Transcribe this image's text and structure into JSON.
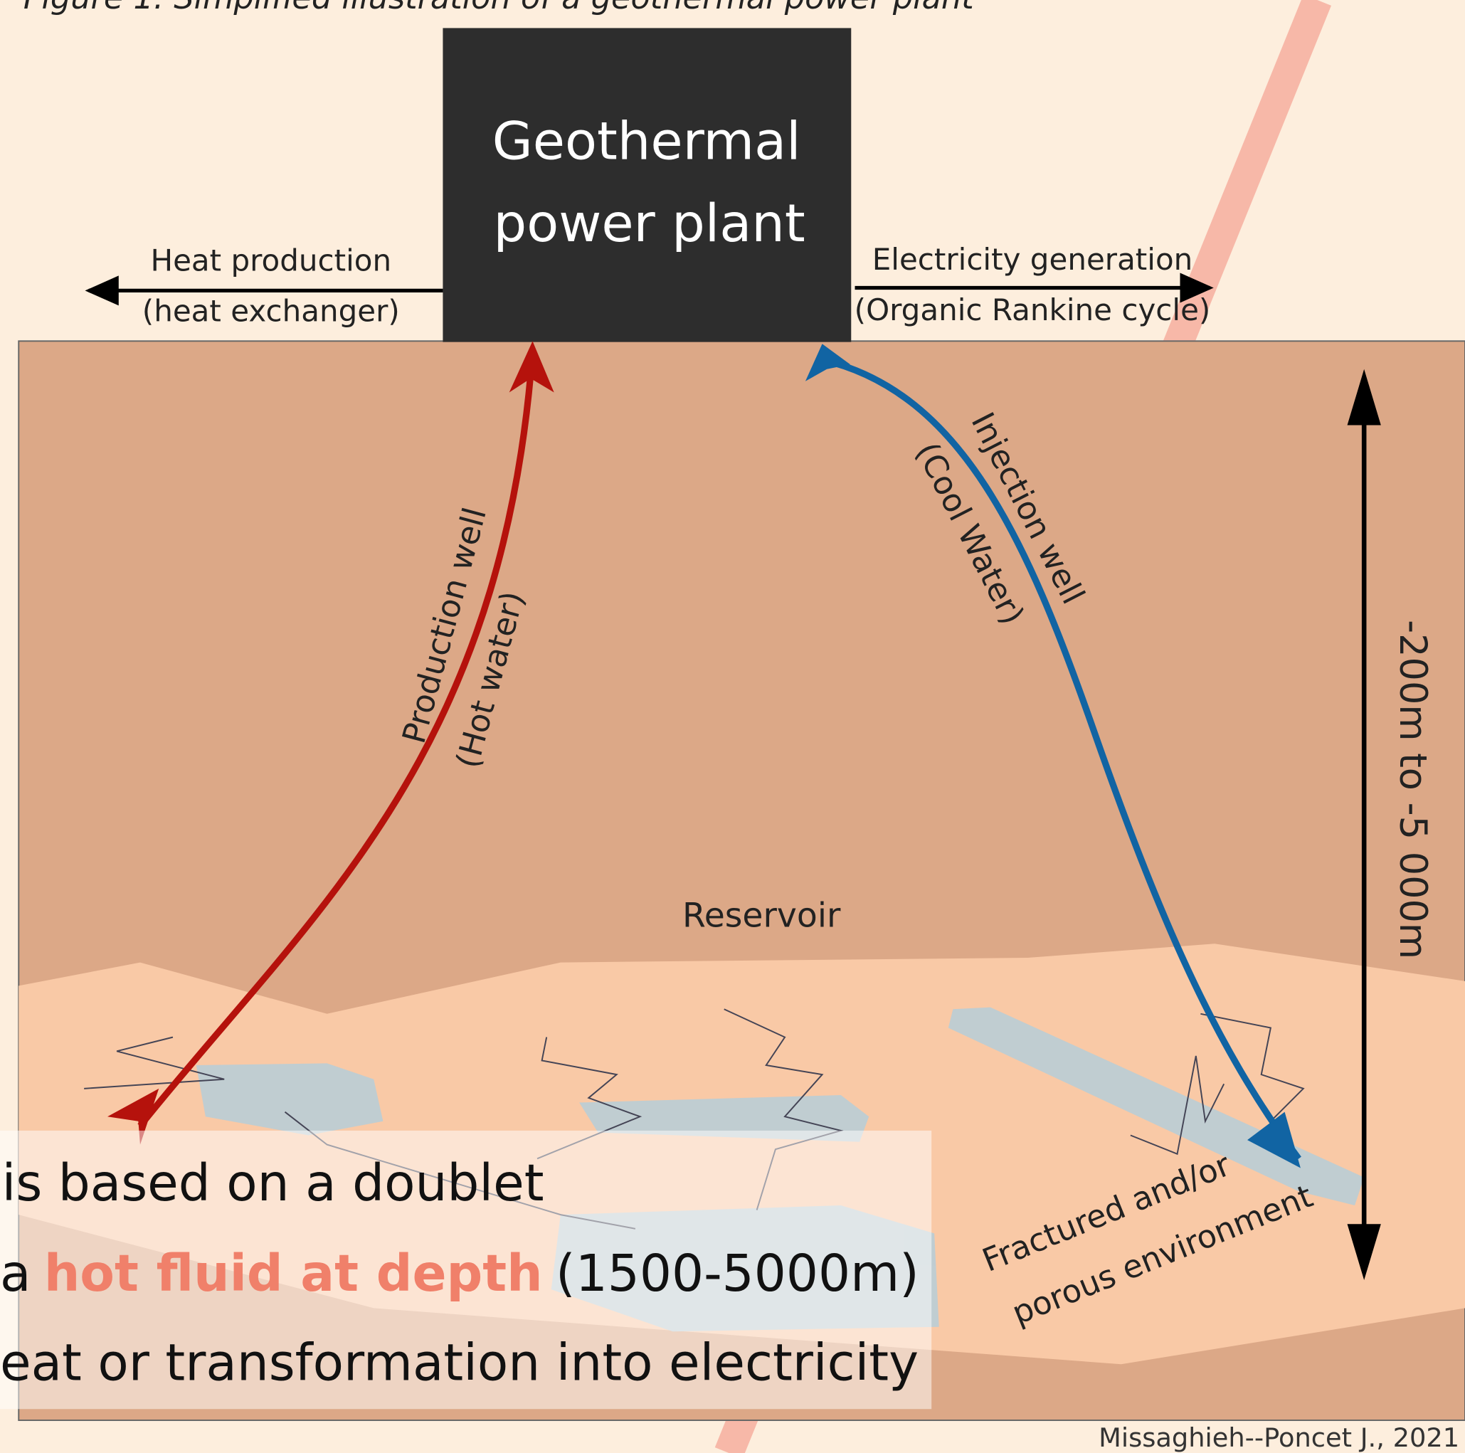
{
  "figure": {
    "caption": "Figure 1. Simplified illustration of a geothermal power plant",
    "plant": [
      "Geothermal",
      "power plant"
    ],
    "heat": [
      "Heat production",
      "(heat exchanger)"
    ],
    "electricity": [
      "Electricity generation",
      "(Organic Rankine cycle)"
    ],
    "production_well": [
      "Production well",
      "(Hot water)"
    ],
    "injection_well": [
      "Injection well",
      "(Cool Water)"
    ],
    "reservoir": "Reservoir",
    "depth": "-200m to -5 000m",
    "environment": [
      "Fractured and/or",
      "porous environment"
    ],
    "credit": "Missaghieh--Poncet J., 2021"
  },
  "overlay": {
    "line1": "is based on a doublet",
    "line2": [
      "a",
      "hot fluid at depth",
      "(1500-5000m)"
    ],
    "line3": "eat or transformation into electricity"
  }
}
